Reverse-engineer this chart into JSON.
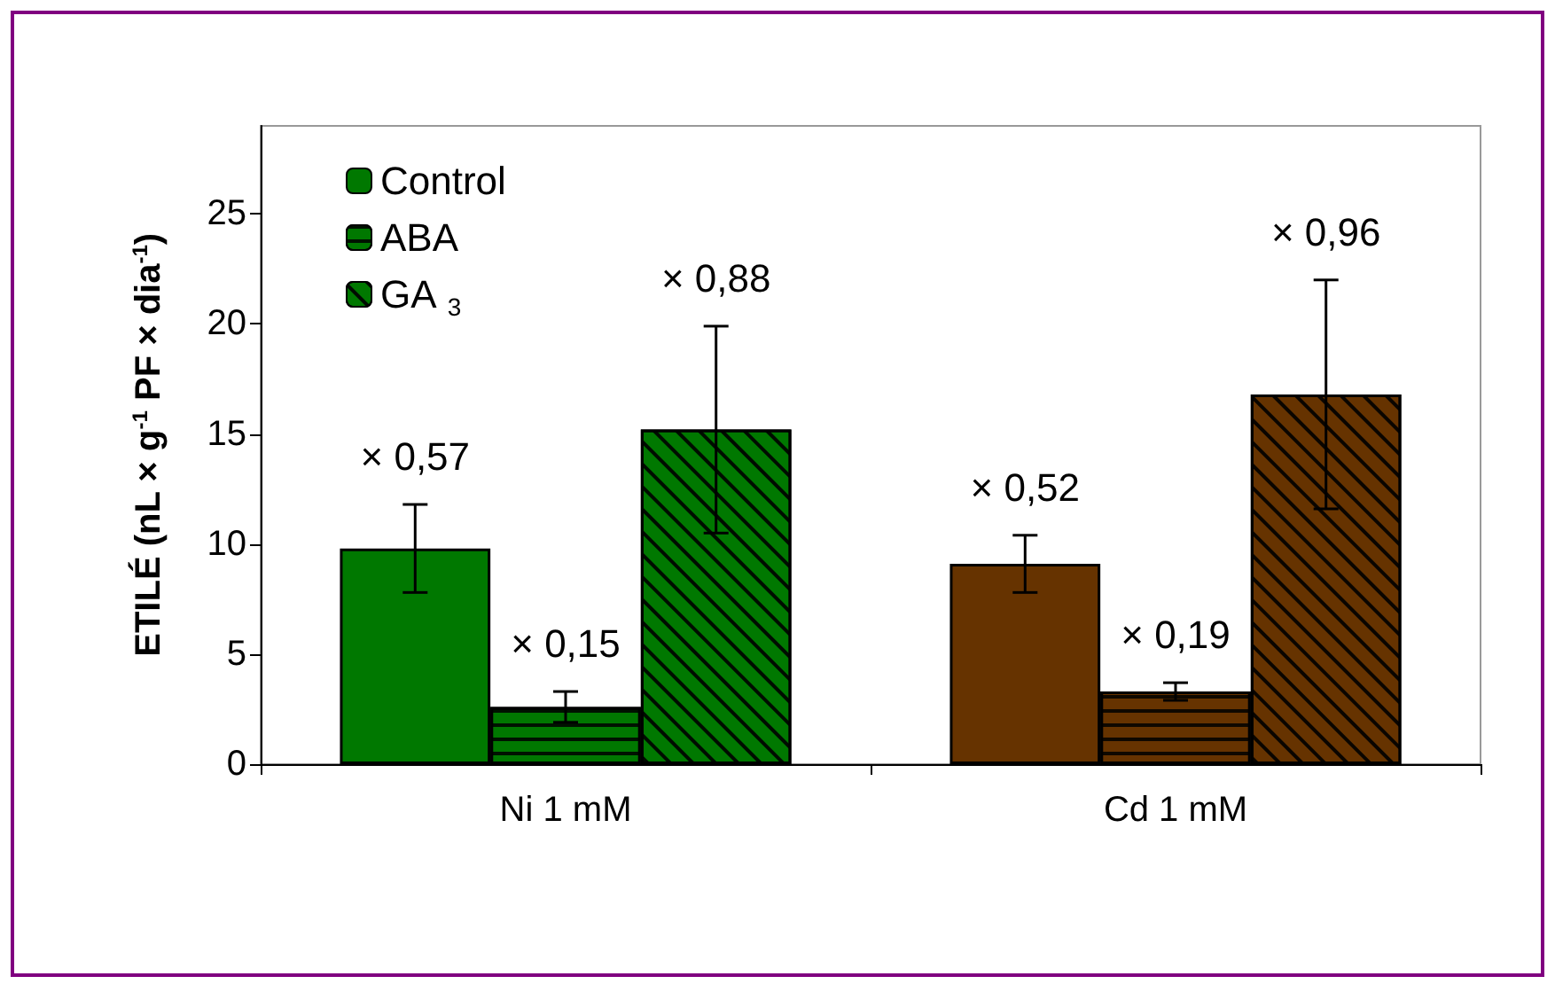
{
  "chart_data": {
    "type": "bar",
    "ylabel": "ETILÉ (nL × g$^{-1}$ PF × dia$^{-1}$)",
    "categories": [
      "Ni 1 mM",
      "Cd 1 mM"
    ],
    "series": [
      {
        "name": "Control",
        "colors": [
          "#007800",
          "#663300"
        ],
        "values": [
          9.8,
          9.1
        ],
        "errors": [
          2.0,
          1.3
        ]
      },
      {
        "name": "ABA",
        "colors": [
          "#007800",
          "#663300"
        ],
        "values": [
          2.6,
          3.3
        ],
        "errors": [
          0.7,
          0.4
        ]
      },
      {
        "name": "GA$_{3}$",
        "colors": [
          "#007800",
          "#663300"
        ],
        "values": [
          15.2,
          16.8
        ],
        "errors": [
          4.7,
          5.2
        ]
      }
    ],
    "annotations": [
      "× 0,57",
      "× 0,15",
      "× 0,88",
      "× 0,52",
      "× 0,19",
      "× 0,96"
    ],
    "ylim": [
      0,
      29
    ],
    "yticks": [
      0,
      5,
      10,
      15,
      20,
      25
    ],
    "grid": false,
    "legend": "top left"
  }
}
